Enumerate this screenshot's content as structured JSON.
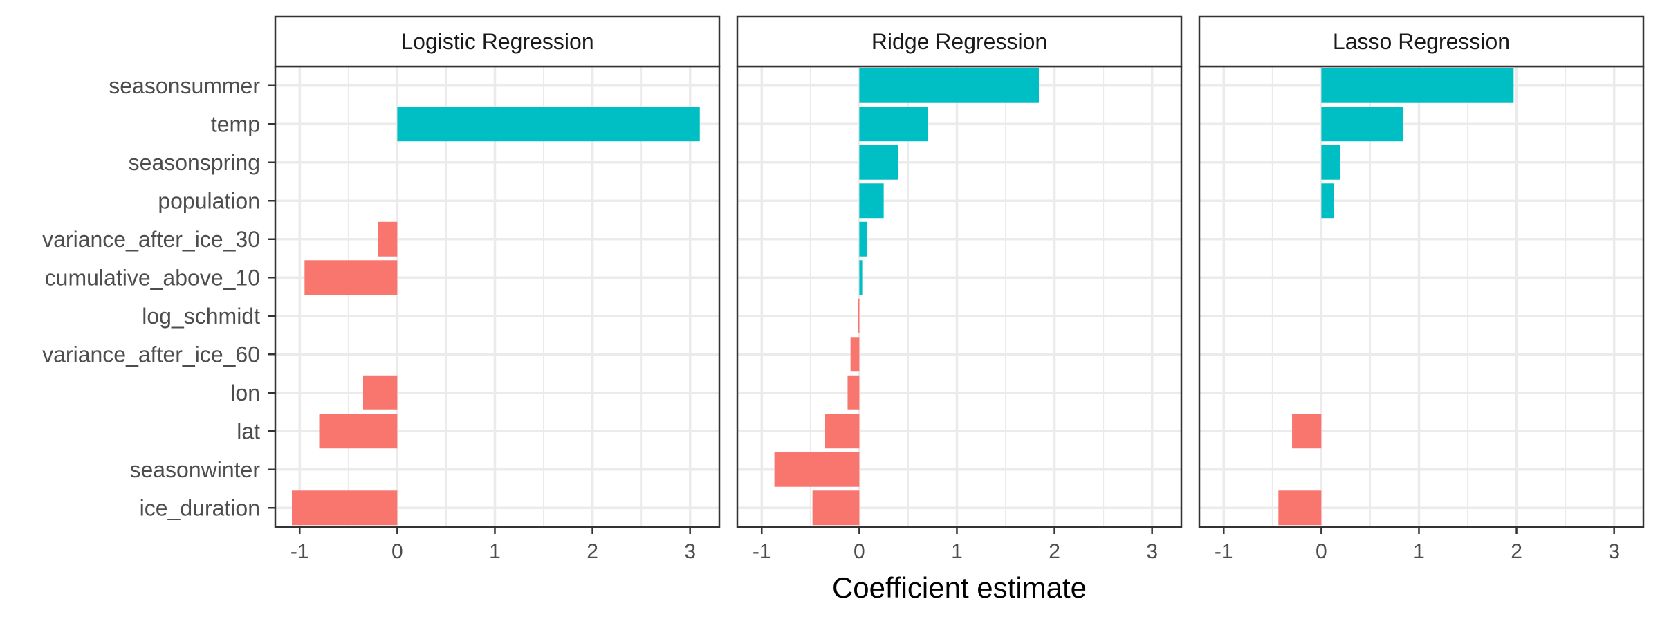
{
  "chart_data": {
    "type": "bar",
    "orientation": "horizontal",
    "xlabel": "Coefficient estimate",
    "ylabel": "",
    "xlim": [
      -1.25,
      3.3
    ],
    "x_ticks": [
      -1,
      0,
      1,
      2,
      3
    ],
    "x_tick_labels": [
      "-1",
      "0",
      "1",
      "2",
      "3"
    ],
    "grid": true,
    "legend": "none",
    "colors": {
      "positive": "#00BFC4",
      "negative": "#F8766D",
      "panel_border": "#333333",
      "grid_major": "#EBEBEB",
      "strip_background": "#FFFFFF",
      "text": "#4D4D4D"
    },
    "categories": [
      "seasonsummer",
      "temp",
      "seasonspring",
      "population",
      "variance_after_ice_30",
      "cumulative_above_10",
      "log_schmidt",
      "variance_after_ice_60",
      "lon",
      "lat",
      "seasonwinter",
      "ice_duration"
    ],
    "panels": [
      {
        "name": "Logistic Regression",
        "values": [
          0,
          3.1,
          0,
          0,
          -0.2,
          -0.95,
          0,
          0,
          -0.35,
          -0.8,
          0,
          -1.08
        ]
      },
      {
        "name": "Ridge Regression",
        "values": [
          1.84,
          0.7,
          0.4,
          0.25,
          0.08,
          0.03,
          -0.01,
          -0.09,
          -0.12,
          -0.35,
          -0.87,
          -0.48
        ]
      },
      {
        "name": "Lasso Regression",
        "values": [
          1.97,
          0.84,
          0.19,
          0.13,
          0,
          0,
          0,
          0,
          0,
          -0.3,
          0,
          -0.44
        ]
      }
    ]
  }
}
